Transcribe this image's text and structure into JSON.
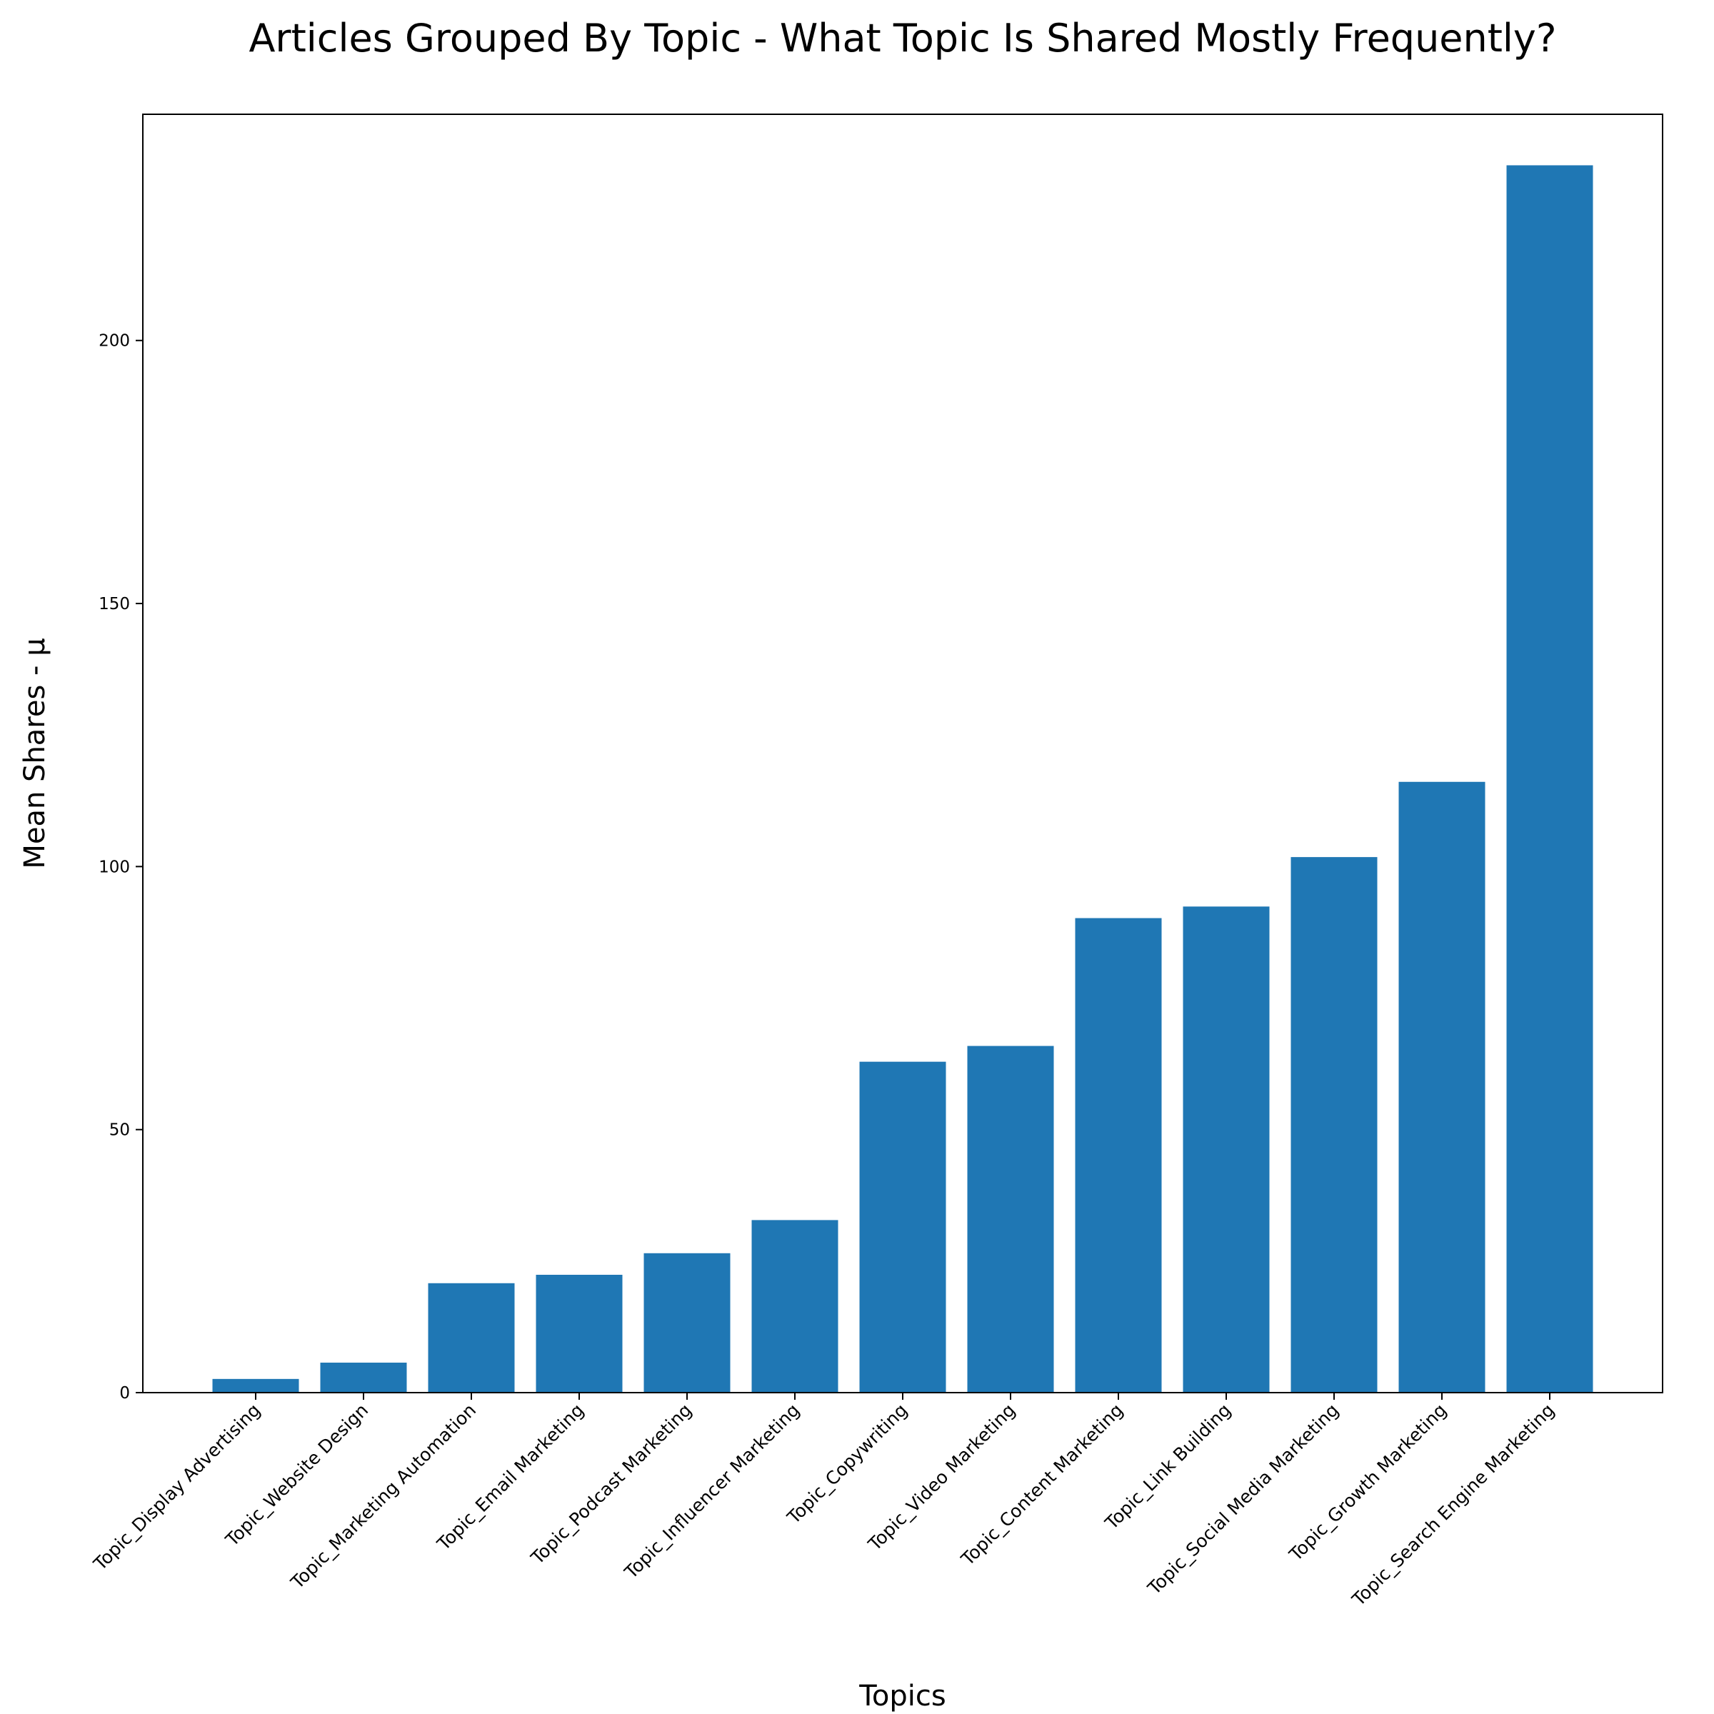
{
  "chart_data": {
    "type": "bar",
    "title": "Articles Grouped By Topic - What Topic Is Shared Mostly Frequently?",
    "xlabel": "Topics",
    "ylabel": "Mean Shares - μ",
    "categories": [
      "Topic_Display Advertising",
      "Topic_Website Design",
      "Topic_Marketing Automation",
      "Topic_Email Marketing",
      "Topic_Podcast Marketing",
      "Topic_Influencer Marketing",
      "Topic_Copywriting",
      "Topic_Video Marketing",
      "Topic_Content Marketing",
      "Topic_Link Building",
      "Topic_Social Media Marketing",
      "Topic_Growth Marketing",
      "Topic_Search Engine Marketing"
    ],
    "values": [
      2.6,
      5.7,
      20.8,
      22.4,
      26.5,
      32.8,
      62.9,
      65.9,
      90.2,
      92.4,
      101.8,
      116.1,
      233.3
    ],
    "ylim": [
      0,
      243
    ],
    "yticks": [
      0,
      50,
      100,
      150,
      200
    ],
    "bar_color": "#1f77b4",
    "grid": false,
    "legend": false
  }
}
